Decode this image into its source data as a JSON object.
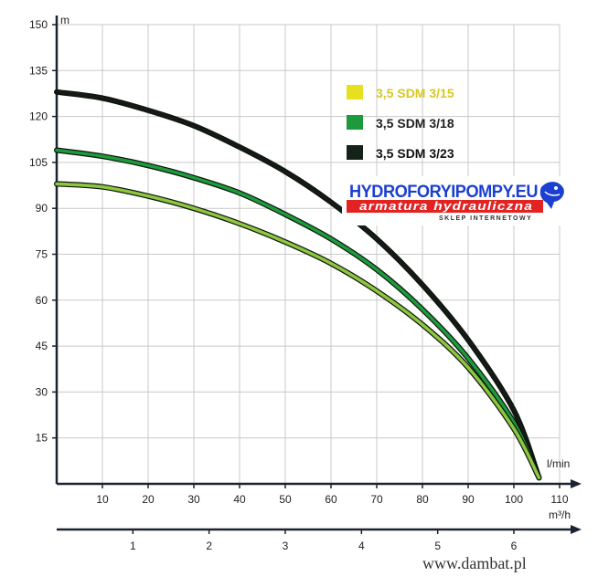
{
  "chart_data": {
    "type": "line",
    "title": "",
    "ylabel": "m",
    "xlabel": "l/min",
    "x2label": "m³/h",
    "ylim": [
      0,
      150
    ],
    "xlim": [
      0,
      110
    ],
    "x2lim": [
      0,
      6.6
    ],
    "y_ticks": [
      15,
      30,
      45,
      60,
      75,
      90,
      105,
      120,
      135,
      150
    ],
    "x_ticks": [
      10,
      20,
      30,
      40,
      50,
      60,
      70,
      80,
      90,
      100,
      110
    ],
    "x2_ticks": [
      1,
      2,
      3,
      4,
      5,
      6
    ],
    "grid": true,
    "legend_position": "top-right",
    "series": [
      {
        "name": "3,5 SDM 3/15",
        "color": "#8dc63f",
        "points": [
          [
            0,
            98
          ],
          [
            10,
            97
          ],
          [
            20,
            94
          ],
          [
            30,
            90
          ],
          [
            40,
            85
          ],
          [
            50,
            79
          ],
          [
            60,
            72
          ],
          [
            70,
            63
          ],
          [
            80,
            52
          ],
          [
            90,
            38
          ],
          [
            100,
            18
          ],
          [
            105.5,
            2
          ]
        ]
      },
      {
        "name": "3,5 SDM 3/18",
        "color": "#1d9a3c",
        "points": [
          [
            0,
            109
          ],
          [
            10,
            107
          ],
          [
            20,
            104
          ],
          [
            30,
            100
          ],
          [
            40,
            95
          ],
          [
            50,
            88
          ],
          [
            60,
            80
          ],
          [
            70,
            70
          ],
          [
            80,
            57
          ],
          [
            90,
            41
          ],
          [
            100,
            20
          ],
          [
            105.5,
            2
          ]
        ]
      },
      {
        "name": "3,5 SDM 3/23",
        "color": "#141a14",
        "points": [
          [
            0,
            128
          ],
          [
            10,
            126
          ],
          [
            20,
            122
          ],
          [
            30,
            117
          ],
          [
            40,
            110
          ],
          [
            50,
            102
          ],
          [
            60,
            92
          ],
          [
            70,
            80
          ],
          [
            80,
            65
          ],
          [
            90,
            47
          ],
          [
            100,
            24
          ],
          [
            105.5,
            2
          ]
        ]
      }
    ]
  },
  "legend": {
    "swatches": {
      "s1": "#e6e01e",
      "s2": "#1d9a3c",
      "s3": "#14231a"
    },
    "text_colors": {
      "s1": "#d6c920",
      "s2": "#222222",
      "s3": "#111111"
    }
  },
  "logo": {
    "title": "HYDROFORYIPOMPY.EU",
    "subtitle": "armatura hydrauliczna",
    "tagline": "SKLEP INTERNETOWY"
  },
  "footer": {
    "site": "www.dambat.pl"
  }
}
